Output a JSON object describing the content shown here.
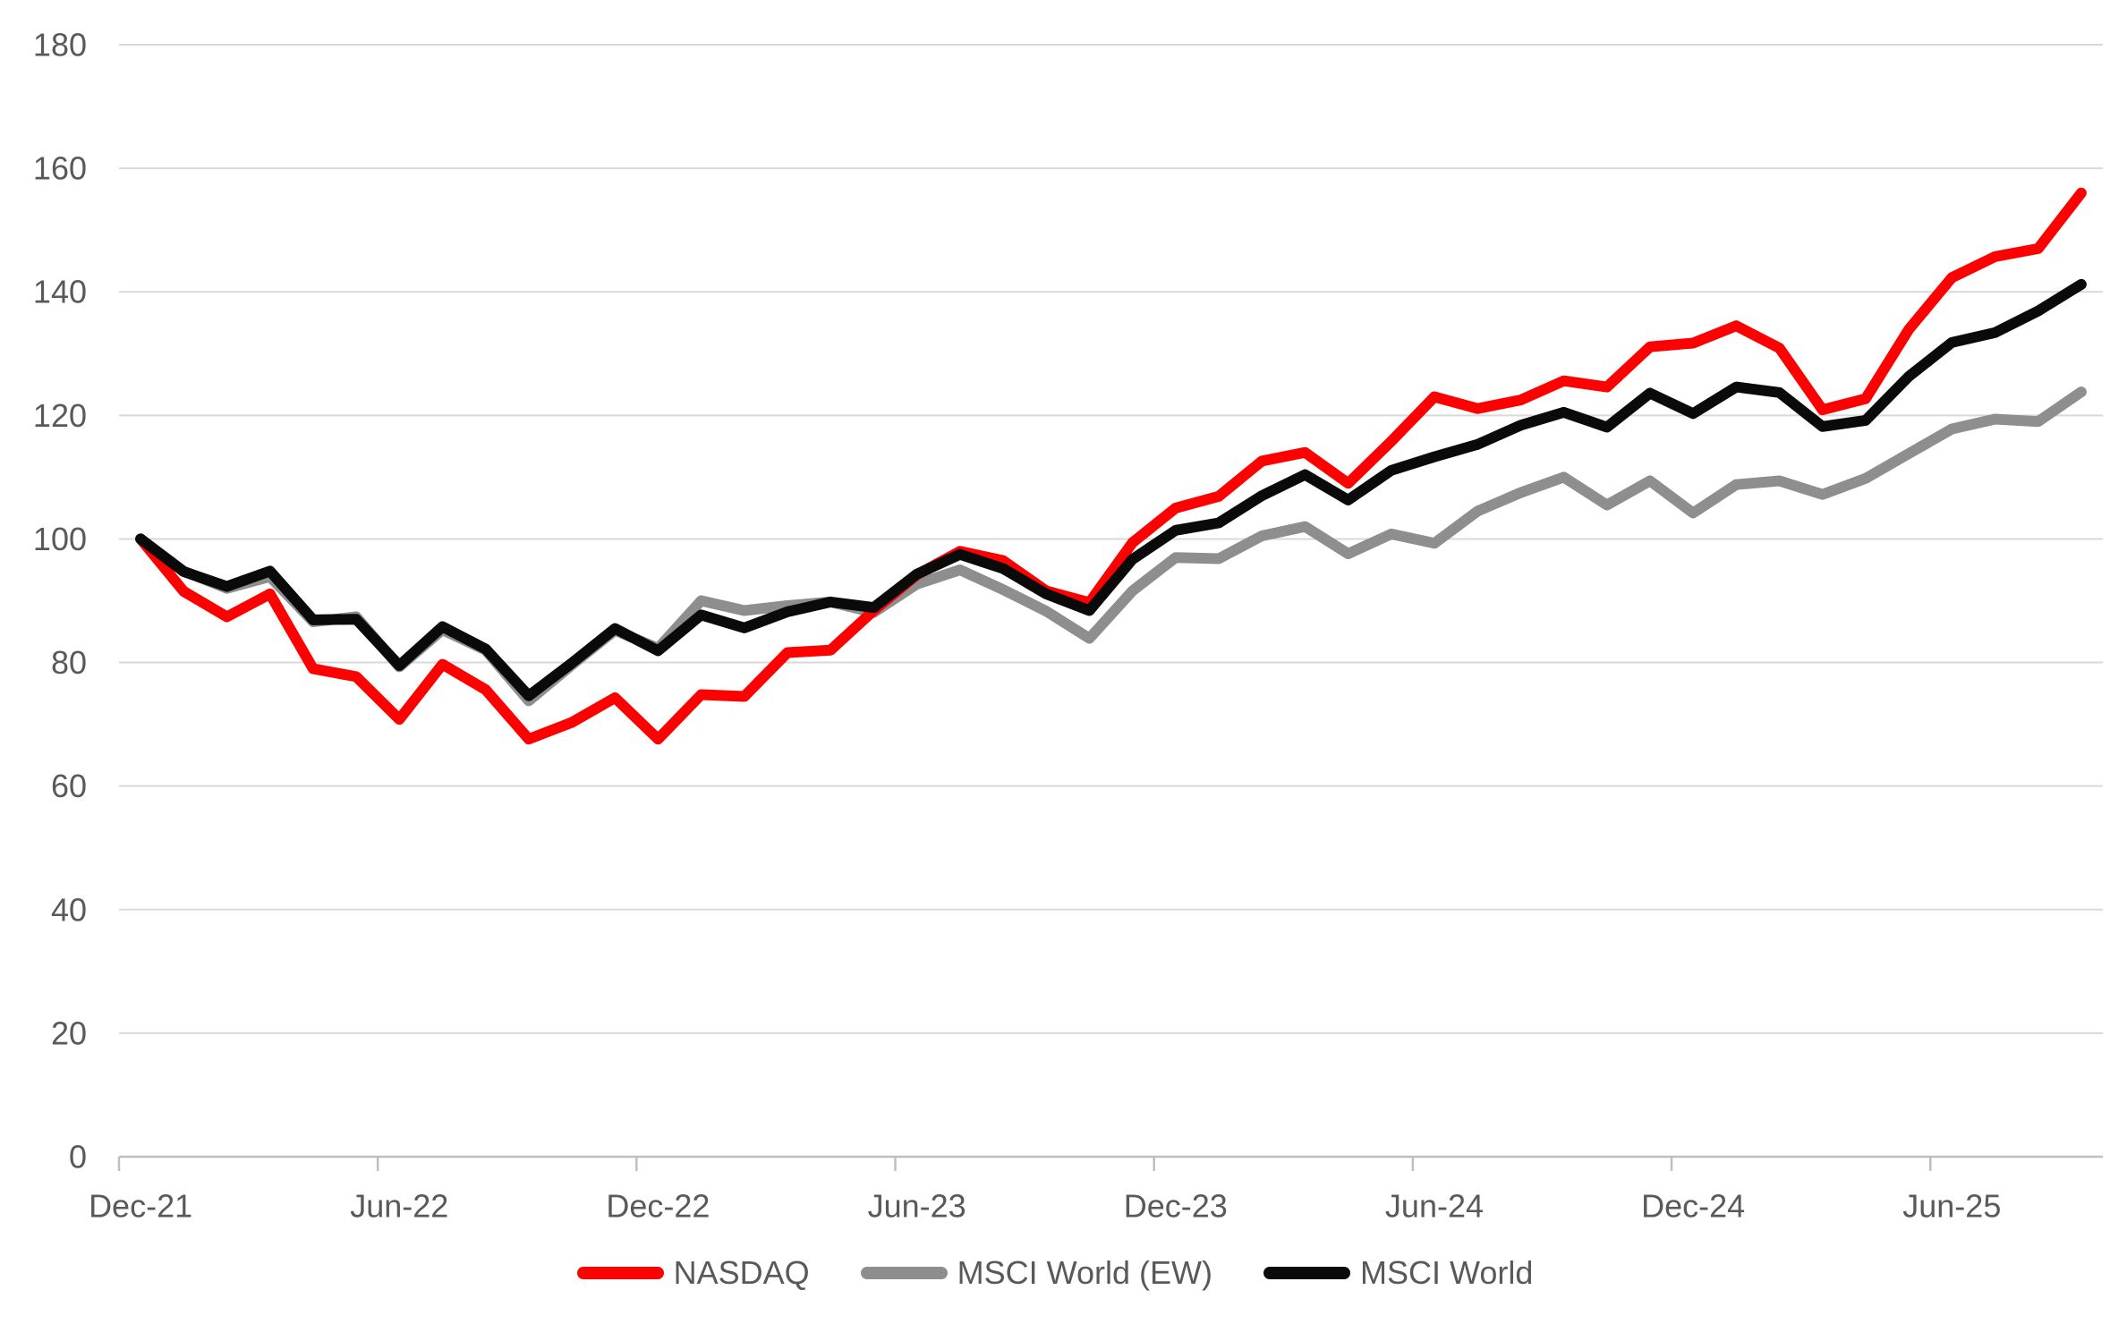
{
  "chart_data": {
    "type": "line",
    "title": "",
    "xlabel": "",
    "ylabel": "",
    "ylim": [
      0,
      180
    ],
    "y_ticks": [
      0,
      20,
      40,
      60,
      80,
      100,
      120,
      140,
      160,
      180
    ],
    "grid": true,
    "legend_position": "bottom",
    "x_tick_labels": [
      "Dec-21",
      "Jun-22",
      "Dec-22",
      "Jun-23",
      "Dec-23",
      "Jun-24",
      "Dec-24",
      "Jun-25"
    ],
    "x_tick_indices": [
      0,
      6,
      12,
      18,
      24,
      30,
      36,
      42
    ],
    "categories": [
      "Dec-21",
      "Jan-22",
      "Feb-22",
      "Mar-22",
      "Apr-22",
      "May-22",
      "Jun-22",
      "Jul-22",
      "Aug-22",
      "Sep-22",
      "Oct-22",
      "Nov-22",
      "Dec-22",
      "Jan-23",
      "Feb-23",
      "Mar-23",
      "Apr-23",
      "May-23",
      "Jun-23",
      "Jul-23",
      "Aug-23",
      "Sep-23",
      "Oct-23",
      "Nov-23",
      "Dec-23",
      "Jan-24",
      "Feb-24",
      "Mar-24",
      "Apr-24",
      "May-24",
      "Jun-24",
      "Jul-24",
      "Aug-24",
      "Sep-24",
      "Oct-24",
      "Nov-24",
      "Dec-24",
      "Jan-25",
      "Feb-25",
      "Mar-25",
      "Apr-25",
      "May-25",
      "Jun-25",
      "Jul-25",
      "Aug-25",
      "Sep-25"
    ],
    "draw_order": [
      1,
      0,
      2
    ],
    "series": [
      {
        "name": "NASDAQ",
        "color": "#fe0000",
        "values": [
          100,
          91.5,
          87.4,
          91.1,
          79.0,
          77.7,
          70.8,
          79.7,
          75.6,
          67.6,
          70.3,
          74.3,
          67.6,
          74.8,
          74.5,
          81.6,
          82.0,
          88.4,
          94.2,
          98.0,
          96.5,
          91.6,
          89.7,
          99.4,
          105.0,
          106.9,
          112.6,
          114.0,
          109.0,
          115.8,
          123.0,
          121.1,
          122.5,
          125.6,
          124.6,
          131.1,
          131.7,
          134.5,
          130.9,
          120.9,
          122.7,
          133.9,
          142.3,
          145.7,
          147.0,
          156.0
        ]
      },
      {
        "name": "MSCI World (EW)",
        "color": "#8e8e8e",
        "values": [
          100,
          94.8,
          92.0,
          93.9,
          86.6,
          87.4,
          79.3,
          85.3,
          82.0,
          73.8,
          79.6,
          85.2,
          82.3,
          90.0,
          88.4,
          89.2,
          89.8,
          88.1,
          92.7,
          95.0,
          91.8,
          88.3,
          83.9,
          91.6,
          97.0,
          96.8,
          100.5,
          102.0,
          97.6,
          100.8,
          99.3,
          104.5,
          107.5,
          110.0,
          105.5,
          109.4,
          104.2,
          108.8,
          109.4,
          107.2,
          109.8,
          113.8,
          117.8,
          119.4,
          119.0,
          123.8
        ]
      },
      {
        "name": "MSCI World",
        "color": "#0a0a0a",
        "values": [
          100,
          94.7,
          92.3,
          94.8,
          86.9,
          87.0,
          79.5,
          85.8,
          82.2,
          74.6,
          79.9,
          85.5,
          81.9,
          87.7,
          85.6,
          88.2,
          89.8,
          88.9,
          94.3,
          97.5,
          95.2,
          91.1,
          88.4,
          96.7,
          101.4,
          102.6,
          107.0,
          110.4,
          106.3,
          111.1,
          113.3,
          115.3,
          118.4,
          120.5,
          118.1,
          123.6,
          120.3,
          124.6,
          123.7,
          118.2,
          119.2,
          126.3,
          131.8,
          133.4,
          136.9,
          141.2
        ]
      }
    ]
  },
  "legend": {
    "items": [
      {
        "label": "NASDAQ",
        "color": "#fe0000"
      },
      {
        "label": "MSCI World (EW)",
        "color": "#8e8e8e"
      },
      {
        "label": "MSCI World",
        "color": "#0a0a0a"
      }
    ]
  },
  "style_colors": {
    "gridline": "#d9d9d9",
    "axis_line": "#bfbfbf",
    "tick_mark": "#bfbfbf",
    "axis_label": "#595959",
    "background": "#ffffff"
  }
}
